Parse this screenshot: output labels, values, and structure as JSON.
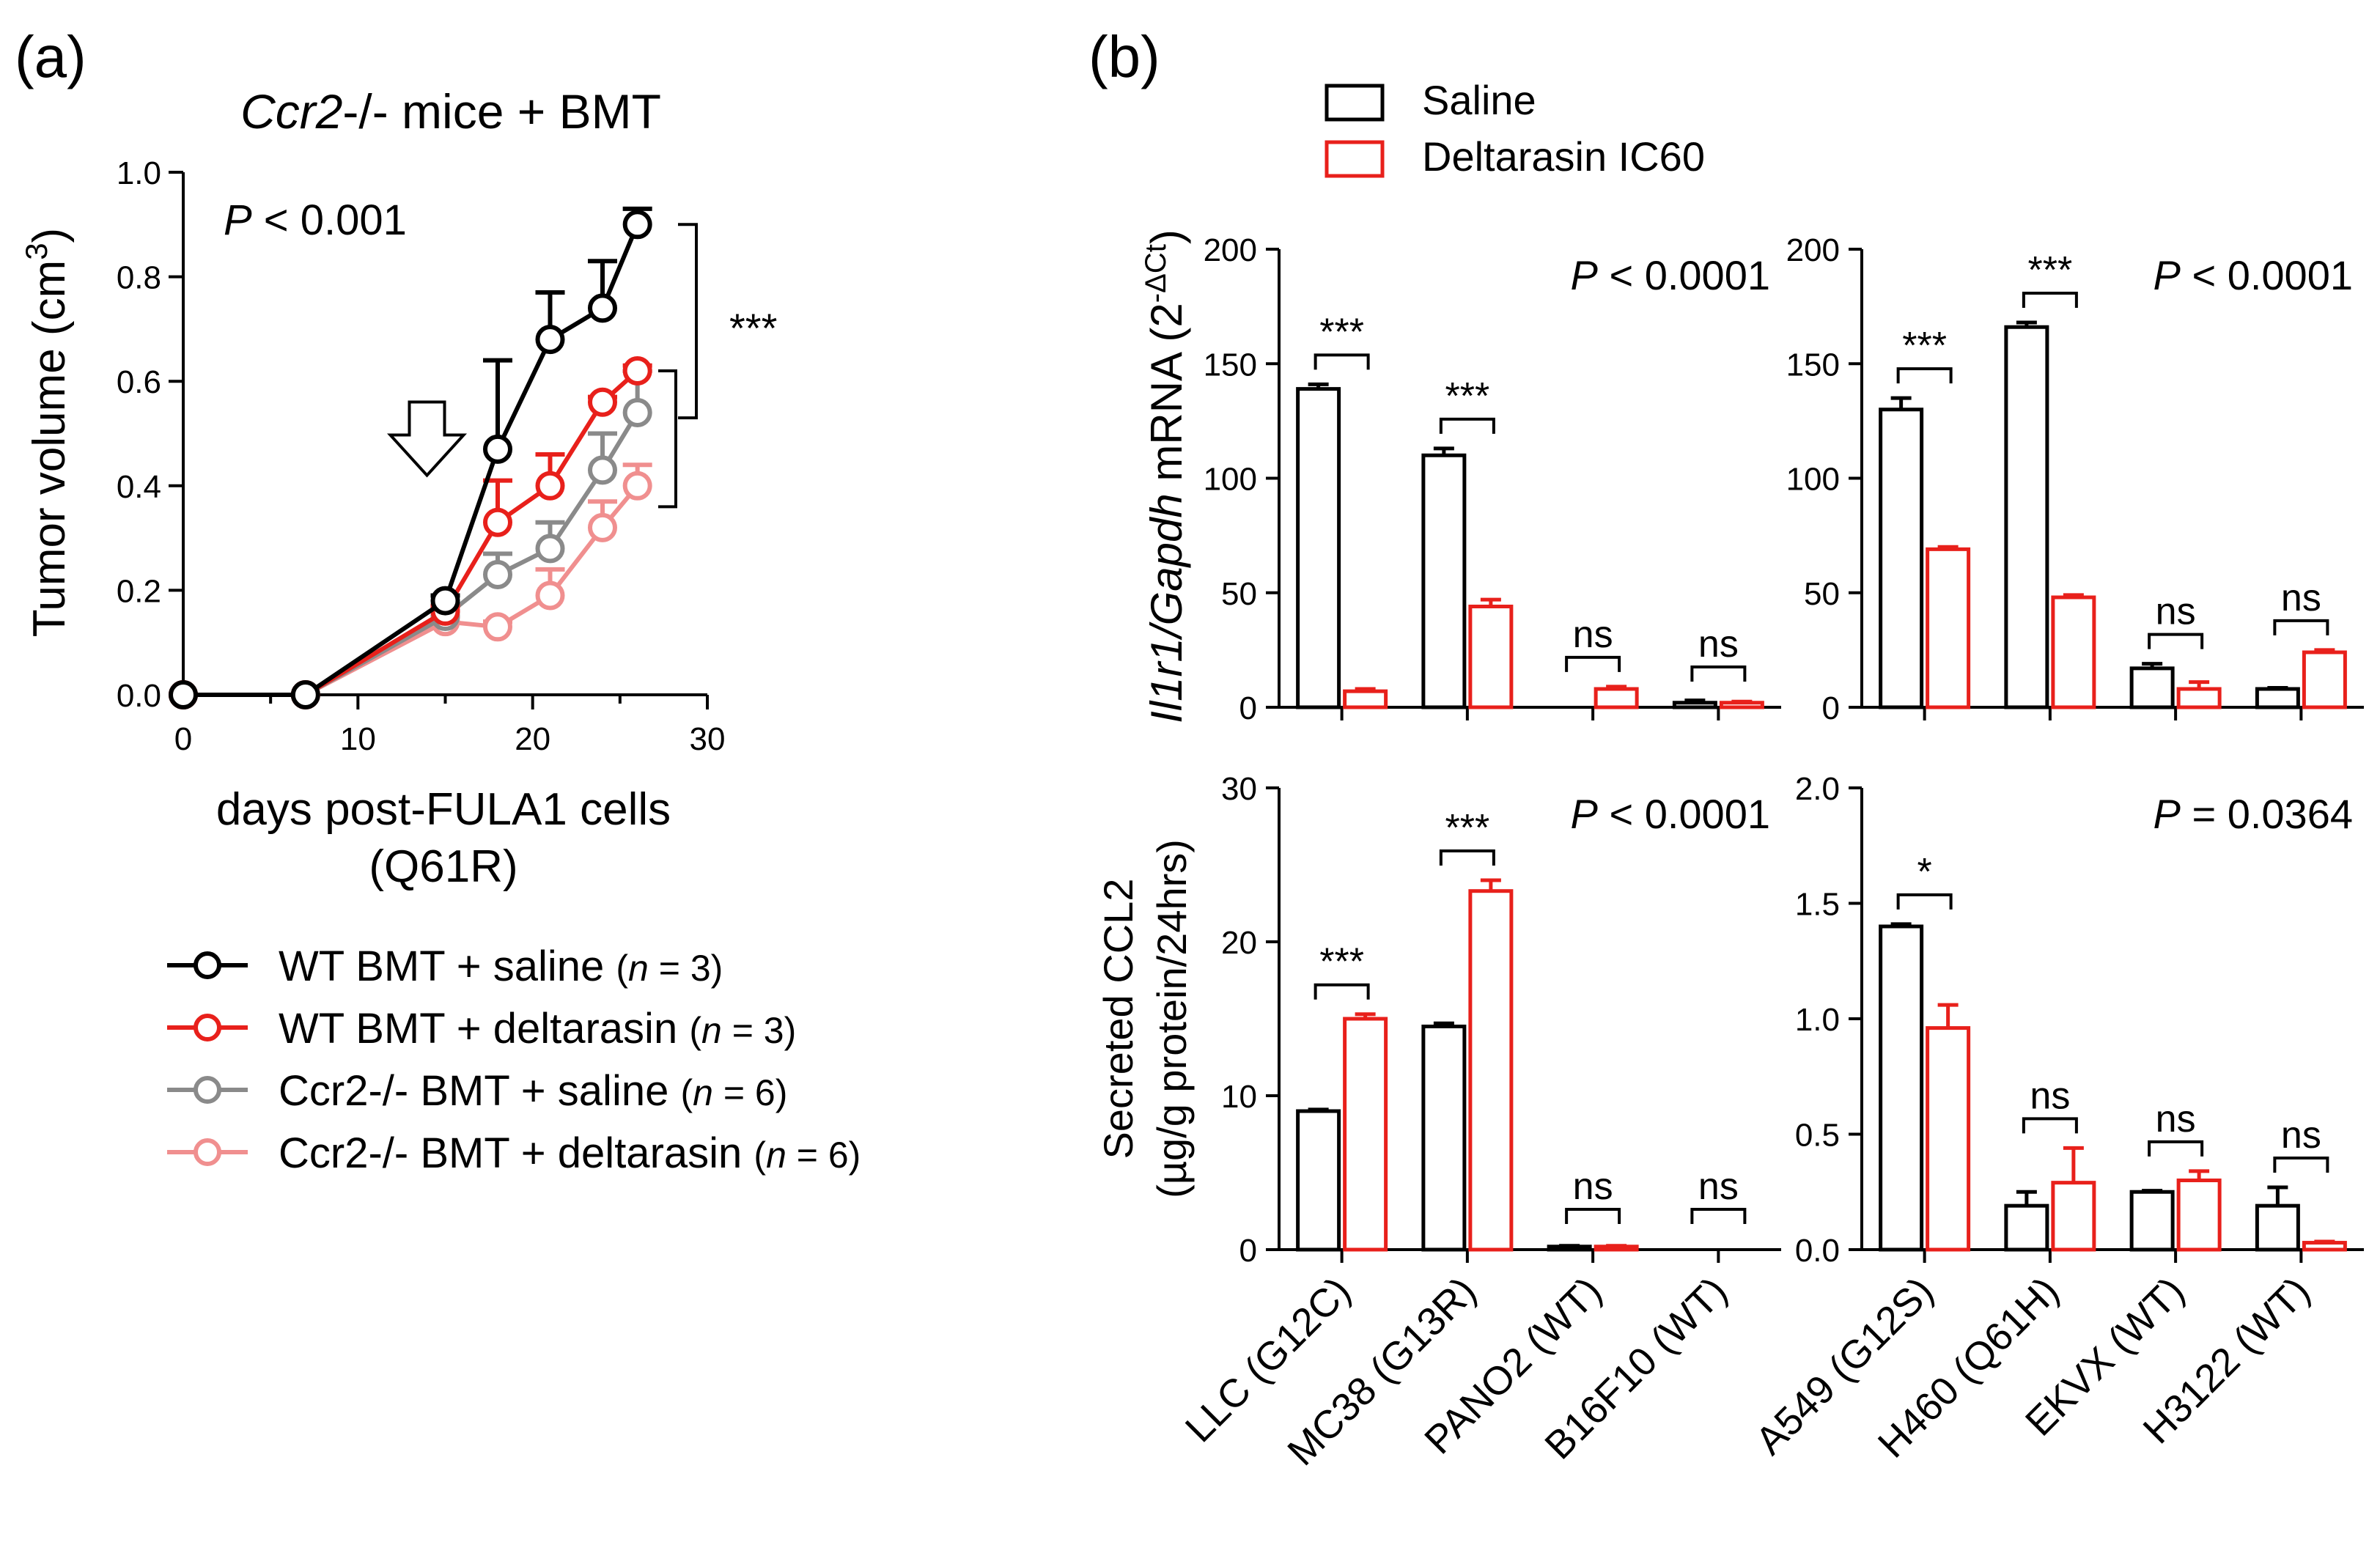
{
  "panels": {
    "a": "(a)",
    "b": "(b)"
  },
  "chart_data": [
    {
      "id": "a",
      "type": "line",
      "title": {
        "italic": "Ccr2",
        "rest": "-/- mice + BMT"
      },
      "pvalue": {
        "p": "P",
        "rest": " < 0.001"
      },
      "ylabel": {
        "main": "Tumor volume (cm",
        "sup": "3",
        "end": ")"
      },
      "xlabel": [
        "days post-FULA1 cells",
        "(Q61R)"
      ],
      "xlim": [
        0,
        30
      ],
      "ylim": [
        0,
        1.0
      ],
      "xticks": [
        0,
        10,
        20,
        30
      ],
      "yticks": [
        "0.0",
        "0.2",
        "0.4",
        "0.6",
        "0.8",
        "1.0"
      ],
      "arrow_day": 15,
      "sig_label": "***",
      "series": [
        {
          "name": "WT BMT + saline",
          "n_label": "n",
          "n_rest": " = 3)",
          "color": "#000000",
          "x": [
            0,
            7,
            15,
            18,
            21,
            24,
            26
          ],
          "y": [
            0,
            0,
            0.18,
            0.47,
            0.68,
            0.74,
            0.9
          ],
          "err": [
            0,
            0,
            0.01,
            0.17,
            0.09,
            0.09,
            0.03
          ]
        },
        {
          "name": "WT BMT + deltarasin",
          "n_label": "n",
          "n_rest": " = 3)",
          "color": "#e8201b",
          "x": [
            0,
            7,
            15,
            18,
            21,
            24,
            26
          ],
          "y": [
            0,
            0,
            0.16,
            0.33,
            0.4,
            0.56,
            0.62
          ],
          "err": [
            0,
            0,
            0.01,
            0.08,
            0.06,
            0.01,
            0.01
          ]
        },
        {
          "name": "Ccr2-/- BMT + saline",
          "n_label": "n",
          "n_rest": " = 6)",
          "color": "#8a8a8a",
          "x": [
            0,
            7,
            15,
            18,
            21,
            24,
            26
          ],
          "y": [
            0,
            0,
            0.15,
            0.23,
            0.28,
            0.43,
            0.54
          ],
          "err": [
            0,
            0,
            0.01,
            0.04,
            0.05,
            0.07,
            0.08
          ]
        },
        {
          "name": "Ccr2-/- BMT + deltarasin",
          "n_label": "n",
          "n_rest": " = 6)",
          "color": "#f08f8f",
          "x": [
            0,
            7,
            15,
            18,
            21,
            24,
            26
          ],
          "y": [
            0,
            0,
            0.14,
            0.13,
            0.19,
            0.32,
            0.4
          ],
          "err": [
            0,
            0,
            0.01,
            0.01,
            0.05,
            0.05,
            0.04
          ]
        }
      ]
    },
    {
      "id": "b",
      "type": "bar",
      "legend": [
        {
          "label": "Saline",
          "color": "#000000"
        },
        {
          "label": "Deltarasin IC60",
          "color": "#e8201b"
        }
      ],
      "ylabel_top": {
        "italic": "Il1r1/Gapdh",
        "rest": " mRNA (2",
        "sup": "-ΔCt",
        "end": ")"
      },
      "ylabel_bottom": [
        "Secreted CCL2",
        "(µg/g protein/24hrs)"
      ],
      "categories_left": [
        "LLC (G12C)",
        "MC38 (G13R)",
        "PANO2 (WT)",
        "B16F10 (WT)"
      ],
      "categories_right": [
        "A549 (G12S)",
        "H460 (Q61H)",
        "EKVX (WT)",
        "H3122 (WT)"
      ],
      "subplots": [
        {
          "pos": "top-left",
          "ylim": [
            0,
            200
          ],
          "yticks": [
            "0",
            "50",
            "100",
            "150",
            "200"
          ],
          "p": "P",
          "p_rest": " < 0.0001",
          "saline": [
            139,
            110,
            0,
            2
          ],
          "saline_err": [
            2,
            3,
            0,
            1
          ],
          "deltarasin": [
            7,
            44,
            8,
            2
          ],
          "deltarasin_err": [
            1,
            3,
            1,
            0.5
          ],
          "sig": [
            "***",
            "***",
            "ns",
            "ns"
          ]
        },
        {
          "pos": "top-right",
          "ylim": [
            0,
            200
          ],
          "yticks": [
            "0",
            "50",
            "100",
            "150",
            "200"
          ],
          "p": "P",
          "p_rest": " < 0.0001",
          "saline": [
            130,
            166,
            17,
            8
          ],
          "saline_err": [
            5,
            2,
            2,
            0.5
          ],
          "deltarasin": [
            69,
            48,
            8,
            24
          ],
          "deltarasin_err": [
            1,
            1,
            3,
            1
          ],
          "sig": [
            "***",
            "***",
            "ns",
            "ns"
          ]
        },
        {
          "pos": "bottom-left",
          "ylim": [
            0,
            30
          ],
          "yticks": [
            "0",
            "10",
            "20",
            "30"
          ],
          "p": "P",
          "p_rest": " < 0.0001",
          "saline": [
            9,
            14.5,
            0.2,
            0
          ],
          "saline_err": [
            0.1,
            0.2,
            0.05,
            0
          ],
          "deltarasin": [
            15,
            23.3,
            0.2,
            0
          ],
          "deltarasin_err": [
            0.3,
            0.7,
            0.05,
            0
          ],
          "sig": [
            "***",
            "***",
            "ns",
            "ns"
          ]
        },
        {
          "pos": "bottom-right",
          "ylim": [
            0,
            2.0
          ],
          "yticks": [
            "0.0",
            "0.5",
            "1.0",
            "1.5",
            "2.0"
          ],
          "p": "P",
          "p_rest": " = 0.0364",
          "saline": [
            1.4,
            0.19,
            0.25,
            0.19
          ],
          "saline_err": [
            0.01,
            0.06,
            0.005,
            0.08
          ],
          "deltarasin": [
            0.96,
            0.29,
            0.3,
            0.03
          ],
          "deltarasin_err": [
            0.1,
            0.15,
            0.04,
            0.005
          ],
          "sig": [
            "*",
            "ns",
            "ns",
            "ns"
          ]
        }
      ]
    }
  ]
}
